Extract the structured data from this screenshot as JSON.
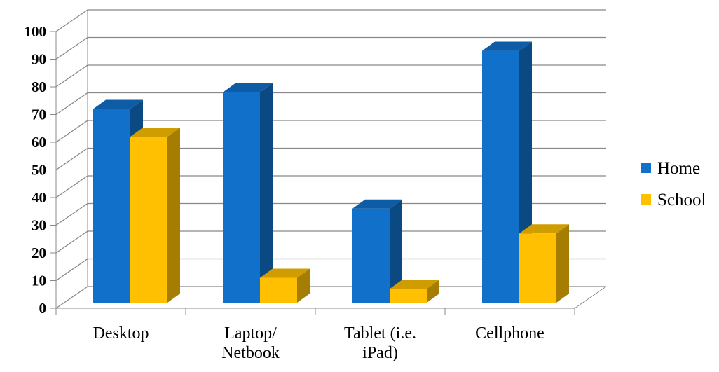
{
  "chart_data": {
    "type": "bar3d",
    "categories": [
      "Desktop",
      "Laptop/ Netbook",
      "Tablet (i.e. iPad)",
      "Cellphone"
    ],
    "series": [
      {
        "name": "Home",
        "color": "#1170c9",
        "values": [
          70,
          76,
          34,
          91
        ]
      },
      {
        "name": "School",
        "color": "#fec000",
        "values": [
          60,
          9,
          5,
          25
        ]
      }
    ],
    "ylim": [
      0,
      100
    ],
    "yticks": [
      0,
      10,
      20,
      30,
      40,
      50,
      60,
      70,
      80,
      90,
      100
    ],
    "grid": true,
    "legend": "right"
  }
}
